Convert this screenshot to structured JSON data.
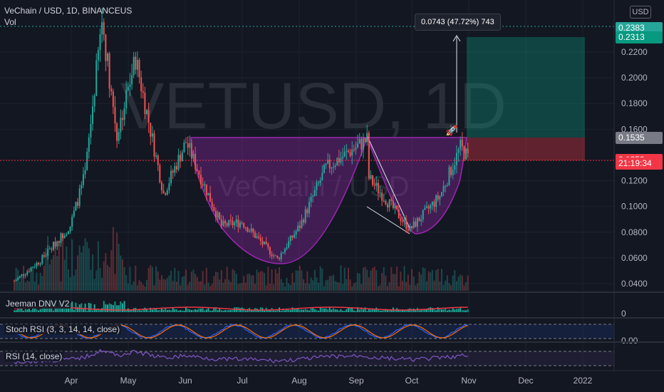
{
  "header": {
    "symbol_line": "VeChain / USD, 1D, BINANCEUS",
    "vol_label": "Vol"
  },
  "watermark": {
    "line1": "VETUSD, 1D",
    "line2": "VeChain / USD"
  },
  "currency_button": "USD",
  "measure_label": "0.0743 (47.72%) 743",
  "price_axis": {
    "ticks": [
      "0.2200",
      "0.2000",
      "0.1800",
      "0.1600",
      "0.1200",
      "0.1000",
      "0.0800",
      "0.0600",
      "0.0400"
    ],
    "tick_values": [
      0.22,
      0.2,
      0.18,
      0.16,
      0.12,
      0.1,
      0.08,
      0.06,
      0.04
    ],
    "tags": [
      {
        "text": "0.2383",
        "color": "#26a69a",
        "value": 0.2383
      },
      {
        "text": "0.2313",
        "color": "#089981",
        "value": 0.2313
      },
      {
        "text": "0.1535",
        "color": "#787b86",
        "value": 0.1535
      },
      {
        "text": "0.1360",
        "color": "#f23645",
        "value": 0.136
      },
      {
        "text": "0.1359",
        "color": "#f23645",
        "value": 0.1359
      },
      {
        "text": "21:19:34",
        "color": "#f23645",
        "value": 0.1335
      }
    ]
  },
  "time_axis": [
    "Apr",
    "May",
    "Jun",
    "Jul",
    "Aug",
    "Sep",
    "Oct",
    "Nov",
    "Dec",
    "2022"
  ],
  "indicators": {
    "jeeman": {
      "label": "Jeeman DNV V2",
      "axis": "0"
    },
    "stoch": {
      "label": "Stoch RSI (3, 3, 14, 14, close)",
      "axis": "0.00"
    },
    "rsi": {
      "label": "RSI (14, close)"
    }
  },
  "chart_data": {
    "type": "candlestick",
    "symbol": "VETUSD",
    "interval": "1D",
    "exchange": "BINANCEUS",
    "ylim": [
      0.032,
      0.2475
    ],
    "x_months": [
      "Apr",
      "May",
      "Jun",
      "Jul",
      "Aug",
      "Sep",
      "Oct",
      "Nov",
      "Dec",
      "2022"
    ],
    "approx_close_path": [
      {
        "date": "2021-03-01",
        "close": 0.042
      },
      {
        "date": "2021-03-15",
        "close": 0.058
      },
      {
        "date": "2021-03-31",
        "close": 0.085
      },
      {
        "date": "2021-04-08",
        "close": 0.125
      },
      {
        "date": "2021-04-17",
        "close": 0.245
      },
      {
        "date": "2021-04-25",
        "close": 0.155
      },
      {
        "date": "2021-05-05",
        "close": 0.215
      },
      {
        "date": "2021-05-20",
        "close": 0.11
      },
      {
        "date": "2021-06-01",
        "close": 0.15
      },
      {
        "date": "2021-06-20",
        "close": 0.085
      },
      {
        "date": "2021-07-01",
        "close": 0.088
      },
      {
        "date": "2021-07-20",
        "close": 0.059
      },
      {
        "date": "2021-08-01",
        "close": 0.085
      },
      {
        "date": "2021-08-15",
        "close": 0.13
      },
      {
        "date": "2021-09-06",
        "close": 0.152
      },
      {
        "date": "2021-09-07",
        "close": 0.122
      },
      {
        "date": "2021-09-29",
        "close": 0.082
      },
      {
        "date": "2021-10-15",
        "close": 0.108
      },
      {
        "date": "2021-10-26",
        "close": 0.146
      },
      {
        "date": "2021-10-31",
        "close": 0.136
      }
    ],
    "last_price": 0.136,
    "previous_high": 0.1535,
    "target": 0.2313,
    "high_marker": 0.2383,
    "measurement": {
      "change": 0.0743,
      "percent": 47.72,
      "ticks": 743
    }
  }
}
